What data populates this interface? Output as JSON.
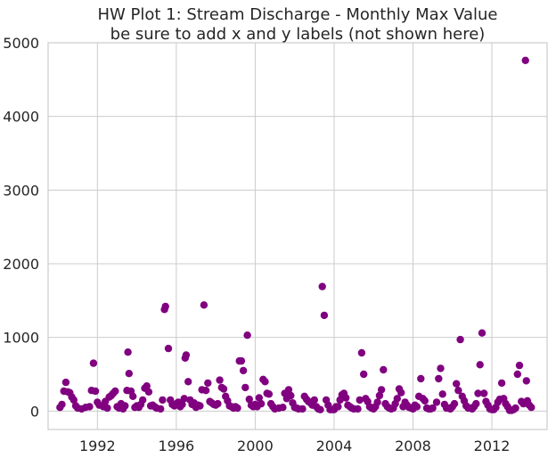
{
  "chart_data": {
    "type": "scatter",
    "title": "HW Plot 1: Stream Discharge - Monthly Max Value",
    "subtitle": "be sure to add x and y labels (not shown here)",
    "xlabel": "",
    "ylabel": "",
    "xlim": [
      1989.5,
      2014.8
    ],
    "ylim": [
      -250,
      5000
    ],
    "xticks": [
      1992,
      1996,
      2000,
      2004,
      2008,
      2012
    ],
    "yticks": [
      0,
      1000,
      2000,
      3000,
      4000,
      5000
    ],
    "grid": true,
    "legend": "none",
    "marker_color": "#800080",
    "points": [
      [
        1990.1,
        50
      ],
      [
        1990.2,
        90
      ],
      [
        1990.3,
        270
      ],
      [
        1990.4,
        390
      ],
      [
        1990.5,
        260
      ],
      [
        1990.6,
        250
      ],
      [
        1990.7,
        190
      ],
      [
        1990.8,
        150
      ],
      [
        1990.9,
        70
      ],
      [
        1991.0,
        40
      ],
      [
        1991.2,
        30
      ],
      [
        1991.4,
        50
      ],
      [
        1991.6,
        60
      ],
      [
        1991.7,
        280
      ],
      [
        1991.8,
        650
      ],
      [
        1991.9,
        270
      ],
      [
        1992.0,
        120
      ],
      [
        1992.1,
        80
      ],
      [
        1992.3,
        60
      ],
      [
        1992.4,
        130
      ],
      [
        1992.5,
        40
      ],
      [
        1992.6,
        190
      ],
      [
        1992.7,
        210
      ],
      [
        1992.8,
        240
      ],
      [
        1992.9,
        270
      ],
      [
        1993.0,
        60
      ],
      [
        1993.1,
        40
      ],
      [
        1993.2,
        100
      ],
      [
        1993.3,
        30
      ],
      [
        1993.4,
        70
      ],
      [
        1993.5,
        280
      ],
      [
        1993.55,
        800
      ],
      [
        1993.6,
        510
      ],
      [
        1993.7,
        270
      ],
      [
        1993.8,
        200
      ],
      [
        1993.9,
        50
      ],
      [
        1994.0,
        70
      ],
      [
        1994.1,
        50
      ],
      [
        1994.2,
        90
      ],
      [
        1994.3,
        150
      ],
      [
        1994.4,
        310
      ],
      [
        1994.5,
        340
      ],
      [
        1994.6,
        260
      ],
      [
        1994.7,
        70
      ],
      [
        1994.8,
        80
      ],
      [
        1994.9,
        60
      ],
      [
        1995.0,
        40
      ],
      [
        1995.2,
        30
      ],
      [
        1995.3,
        150
      ],
      [
        1995.4,
        1380
      ],
      [
        1995.45,
        1420
      ],
      [
        1995.6,
        850
      ],
      [
        1995.7,
        150
      ],
      [
        1995.8,
        90
      ],
      [
        1995.9,
        70
      ],
      [
        1996.0,
        100
      ],
      [
        1996.1,
        120
      ],
      [
        1996.2,
        60
      ],
      [
        1996.3,
        90
      ],
      [
        1996.4,
        170
      ],
      [
        1996.45,
        720
      ],
      [
        1996.5,
        760
      ],
      [
        1996.6,
        400
      ],
      [
        1996.7,
        150
      ],
      [
        1996.8,
        90
      ],
      [
        1996.9,
        110
      ],
      [
        1997.0,
        50
      ],
      [
        1997.1,
        80
      ],
      [
        1997.2,
        70
      ],
      [
        1997.3,
        290
      ],
      [
        1997.4,
        1440
      ],
      [
        1997.5,
        280
      ],
      [
        1997.6,
        380
      ],
      [
        1997.7,
        130
      ],
      [
        1997.8,
        110
      ],
      [
        1997.9,
        90
      ],
      [
        1998.0,
        80
      ],
      [
        1998.1,
        100
      ],
      [
        1998.2,
        420
      ],
      [
        1998.3,
        320
      ],
      [
        1998.4,
        300
      ],
      [
        1998.5,
        200
      ],
      [
        1998.6,
        140
      ],
      [
        1998.7,
        70
      ],
      [
        1998.8,
        60
      ],
      [
        1998.9,
        40
      ],
      [
        1999.0,
        60
      ],
      [
        1999.1,
        40
      ],
      [
        1999.2,
        680
      ],
      [
        1999.3,
        680
      ],
      [
        1999.4,
        550
      ],
      [
        1999.5,
        320
      ],
      [
        1999.6,
        1030
      ],
      [
        1999.7,
        160
      ],
      [
        1999.8,
        80
      ],
      [
        1999.9,
        60
      ],
      [
        2000.0,
        90
      ],
      [
        2000.1,
        60
      ],
      [
        2000.2,
        180
      ],
      [
        2000.3,
        100
      ],
      [
        2000.4,
        430
      ],
      [
        2000.5,
        400
      ],
      [
        2000.6,
        240
      ],
      [
        2000.7,
        230
      ],
      [
        2000.8,
        100
      ],
      [
        2000.9,
        60
      ],
      [
        2001.0,
        30
      ],
      [
        2001.2,
        40
      ],
      [
        2001.4,
        50
      ],
      [
        2001.5,
        240
      ],
      [
        2001.6,
        170
      ],
      [
        2001.7,
        290
      ],
      [
        2001.8,
        210
      ],
      [
        2001.9,
        110
      ],
      [
        2002.0,
        50
      ],
      [
        2002.1,
        40
      ],
      [
        2002.2,
        30
      ],
      [
        2002.4,
        30
      ],
      [
        2002.5,
        200
      ],
      [
        2002.6,
        160
      ],
      [
        2002.7,
        130
      ],
      [
        2002.8,
        110
      ],
      [
        2002.9,
        80
      ],
      [
        2003.0,
        150
      ],
      [
        2003.1,
        60
      ],
      [
        2003.2,
        30
      ],
      [
        2003.3,
        20
      ],
      [
        2003.4,
        1690
      ],
      [
        2003.5,
        1300
      ],
      [
        2003.6,
        150
      ],
      [
        2003.7,
        80
      ],
      [
        2003.8,
        20
      ],
      [
        2003.9,
        20
      ],
      [
        2004.0,
        20
      ],
      [
        2004.1,
        60
      ],
      [
        2004.2,
        60
      ],
      [
        2004.3,
        150
      ],
      [
        2004.4,
        220
      ],
      [
        2004.5,
        240
      ],
      [
        2004.6,
        180
      ],
      [
        2004.7,
        80
      ],
      [
        2004.8,
        60
      ],
      [
        2004.9,
        40
      ],
      [
        2005.0,
        30
      ],
      [
        2005.2,
        30
      ],
      [
        2005.3,
        150
      ],
      [
        2005.4,
        790
      ],
      [
        2005.5,
        500
      ],
      [
        2005.6,
        170
      ],
      [
        2005.7,
        130
      ],
      [
        2005.8,
        60
      ],
      [
        2005.9,
        40
      ],
      [
        2006.0,
        30
      ],
      [
        2006.1,
        60
      ],
      [
        2006.2,
        120
      ],
      [
        2006.3,
        210
      ],
      [
        2006.4,
        290
      ],
      [
        2006.5,
        560
      ],
      [
        2006.6,
        100
      ],
      [
        2006.7,
        60
      ],
      [
        2006.8,
        40
      ],
      [
        2006.9,
        30
      ],
      [
        2007.0,
        40
      ],
      [
        2007.1,
        100
      ],
      [
        2007.2,
        170
      ],
      [
        2007.3,
        300
      ],
      [
        2007.4,
        250
      ],
      [
        2007.5,
        60
      ],
      [
        2007.6,
        120
      ],
      [
        2007.7,
        80
      ],
      [
        2007.8,
        50
      ],
      [
        2007.9,
        40
      ],
      [
        2008.0,
        30
      ],
      [
        2008.1,
        80
      ],
      [
        2008.2,
        60
      ],
      [
        2008.3,
        200
      ],
      [
        2008.4,
        440
      ],
      [
        2008.5,
        170
      ],
      [
        2008.6,
        140
      ],
      [
        2008.7,
        40
      ],
      [
        2008.8,
        30
      ],
      [
        2008.9,
        30
      ],
      [
        2009.0,
        40
      ],
      [
        2009.2,
        120
      ],
      [
        2009.3,
        440
      ],
      [
        2009.4,
        580
      ],
      [
        2009.5,
        230
      ],
      [
        2009.6,
        90
      ],
      [
        2009.7,
        40
      ],
      [
        2009.8,
        40
      ],
      [
        2009.9,
        30
      ],
      [
        2010.0,
        60
      ],
      [
        2010.1,
        100
      ],
      [
        2010.2,
        370
      ],
      [
        2010.3,
        280
      ],
      [
        2010.4,
        970
      ],
      [
        2010.5,
        200
      ],
      [
        2010.6,
        140
      ],
      [
        2010.7,
        70
      ],
      [
        2010.8,
        40
      ],
      [
        2010.9,
        40
      ],
      [
        2011.0,
        30
      ],
      [
        2011.1,
        60
      ],
      [
        2011.2,
        100
      ],
      [
        2011.3,
        240
      ],
      [
        2011.4,
        630
      ],
      [
        2011.5,
        1060
      ],
      [
        2011.6,
        240
      ],
      [
        2011.7,
        130
      ],
      [
        2011.8,
        80
      ],
      [
        2011.9,
        30
      ],
      [
        2012.0,
        20
      ],
      [
        2012.1,
        20
      ],
      [
        2012.2,
        50
      ],
      [
        2012.3,
        120
      ],
      [
        2012.4,
        160
      ],
      [
        2012.5,
        380
      ],
      [
        2012.6,
        170
      ],
      [
        2012.7,
        100
      ],
      [
        2012.8,
        60
      ],
      [
        2012.9,
        10
      ],
      [
        2013.0,
        10
      ],
      [
        2013.1,
        20
      ],
      [
        2013.2,
        40
      ],
      [
        2013.3,
        500
      ],
      [
        2013.4,
        620
      ],
      [
        2013.5,
        130
      ],
      [
        2013.6,
        100
      ],
      [
        2013.7,
        4760
      ],
      [
        2013.75,
        410
      ],
      [
        2013.8,
        140
      ],
      [
        2013.9,
        80
      ],
      [
        2014.0,
        50
      ]
    ]
  }
}
